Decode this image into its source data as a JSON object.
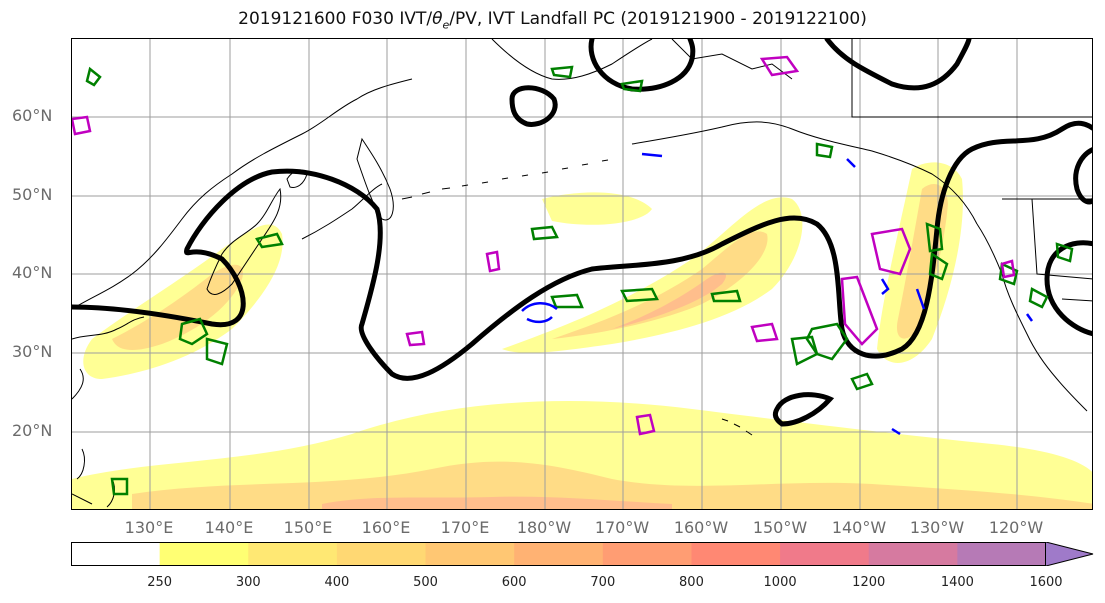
{
  "title_prefix": "2019121600 F030 IVT/",
  "title_theta": "θ",
  "title_sub": "e",
  "title_suffix": "/PV, IVT Landfall PC (2019121900 - 2019122100)",
  "lat_labels": [
    "60°N",
    "50°N",
    "40°N",
    "30°N",
    "20°N"
  ],
  "lon_labels": [
    "130°E",
    "140°E",
    "150°E",
    "160°E",
    "170°E",
    "180°W",
    "170°W",
    "160°W",
    "150°W",
    "140°W",
    "130°W",
    "120°W"
  ],
  "colorbar": {
    "ticks": [
      "250",
      "300",
      "400",
      "500",
      "600",
      "700",
      "800",
      "1000",
      "1200",
      "1400",
      "1600"
    ],
    "colors": [
      "#ffffff",
      "#ffff73",
      "#ffe873",
      "#ffd873",
      "#ffc773",
      "#ffb273",
      "#ff9d73",
      "#ff8873",
      "#f07a8a",
      "#d67aa0",
      "#b67ab6",
      "#9f7ac9"
    ]
  },
  "contour_colors": {
    "height": "#000000",
    "theta_e": "#008000",
    "pv_pos": "#c000c0",
    "pv_neg": "#0000ff"
  }
}
